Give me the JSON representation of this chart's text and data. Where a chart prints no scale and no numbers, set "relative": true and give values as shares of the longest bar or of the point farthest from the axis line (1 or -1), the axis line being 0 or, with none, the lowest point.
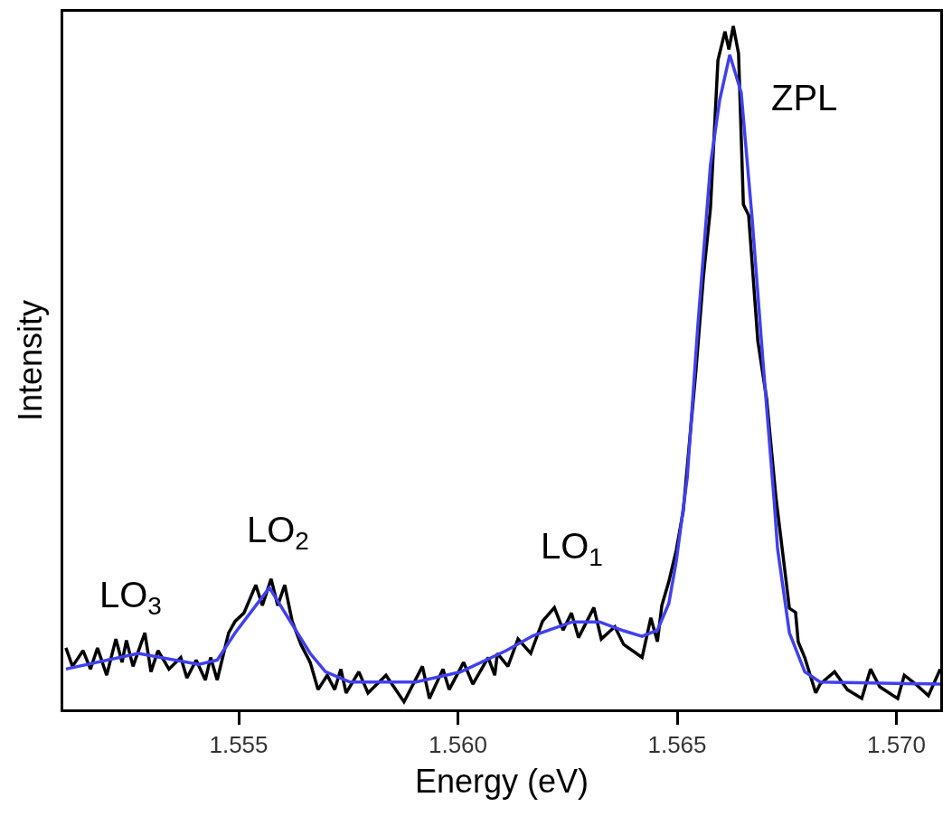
{
  "chart_data": {
    "type": "line",
    "relative": true,
    "xlabel": "Energy (eV)",
    "ylabel": "Intensity",
    "xlim": [
      1.551,
      1.571
    ],
    "xticks": [
      1.555,
      {
        "value": 1.56,
        "label": "1.560"
      },
      1.565,
      {
        "value": 1.57,
        "label": "1.570"
      }
    ],
    "marker": "none",
    "line_style": "solid",
    "tick_labels": "x",
    "series": [
      {
        "color": "#000000",
        "x": [
          1.55106,
          1.55121,
          1.55145,
          1.55162,
          1.55178,
          1.55199,
          1.5522,
          1.55234,
          1.55244,
          1.55259,
          1.55286,
          1.553,
          1.55316,
          1.55341,
          1.55368,
          1.55382,
          1.55403,
          1.55424,
          1.55436,
          1.55451,
          1.55477,
          1.55492,
          1.55512,
          1.55539,
          1.55554,
          1.55574,
          1.55589,
          1.55605,
          1.55622,
          1.55642,
          1.55663,
          1.55681,
          1.55702,
          1.55719,
          1.55733,
          1.55745,
          1.55774,
          1.55795,
          1.55836,
          1.55877,
          1.55919,
          1.55935,
          1.55966,
          1.5598,
          1.56013,
          1.56034,
          1.56069,
          1.56084,
          1.5609,
          1.56114,
          1.56137,
          1.56166,
          1.56193,
          1.5622,
          1.5624,
          1.56259,
          1.56275,
          1.5631,
          1.56327,
          1.56358,
          1.56378,
          1.5642,
          1.5644,
          1.56455,
          1.56465,
          1.56481,
          1.56498,
          1.56514,
          1.56543,
          1.5656,
          1.56576,
          1.56593,
          1.56609,
          1.56618,
          1.56628,
          1.5664,
          1.56651,
          1.56663,
          1.56684,
          1.56704,
          1.56725,
          1.56756,
          1.5677,
          1.56776,
          1.56791,
          1.56816,
          1.56826,
          1.56859,
          1.56888,
          1.56921,
          1.56941,
          1.56962,
          1.57003,
          1.57018,
          1.57044,
          1.57073,
          1.571
        ],
        "values": [
          0.09,
          0.063,
          0.086,
          0.059,
          0.09,
          0.05,
          0.103,
          0.069,
          0.101,
          0.063,
          0.112,
          0.055,
          0.086,
          0.059,
          0.076,
          0.046,
          0.072,
          0.043,
          0.076,
          0.043,
          0.112,
          0.129,
          0.141,
          0.182,
          0.152,
          0.191,
          0.152,
          0.182,
          0.129,
          0.095,
          0.069,
          0.029,
          0.05,
          0.029,
          0.059,
          0.024,
          0.055,
          0.024,
          0.05,
          0.011,
          0.063,
          0.016,
          0.059,
          0.029,
          0.069,
          0.037,
          0.076,
          0.05,
          0.082,
          0.063,
          0.103,
          0.082,
          0.129,
          0.149,
          0.116,
          0.141,
          0.105,
          0.149,
          0.103,
          0.121,
          0.095,
          0.076,
          0.134,
          0.099,
          0.152,
          0.187,
          0.233,
          0.291,
          0.497,
          0.634,
          0.734,
          0.95,
          0.992,
          0.966,
          1.0,
          0.96,
          0.739,
          0.723,
          0.539,
          0.455,
          0.312,
          0.148,
          0.142,
          0.099,
          0.076,
          0.024,
          0.037,
          0.055,
          0.029,
          0.016,
          0.059,
          0.033,
          0.016,
          0.05,
          0.037,
          0.02,
          0.059
        ]
      },
      {
        "color": "#4040f0",
        "x": [
          1.55106,
          1.55271,
          1.55409,
          1.55451,
          1.55492,
          1.5557,
          1.55663,
          1.55698,
          1.55754,
          1.55904,
          1.56007,
          1.5611,
          1.56172,
          1.56261,
          1.56323,
          1.56378,
          1.5642,
          1.56455,
          1.56481,
          1.56498,
          1.56523,
          1.56547,
          1.56576,
          1.56597,
          1.5662,
          1.56646,
          1.56671,
          1.56696,
          1.56721,
          1.56729,
          1.56756,
          1.56791,
          1.56826,
          1.571
        ],
        "values": [
          0.059,
          0.082,
          0.066,
          0.072,
          0.112,
          0.178,
          0.082,
          0.055,
          0.04,
          0.04,
          0.055,
          0.086,
          0.108,
          0.128,
          0.128,
          0.115,
          0.107,
          0.116,
          0.155,
          0.217,
          0.339,
          0.56,
          0.797,
          0.892,
          0.958,
          0.903,
          0.718,
          0.507,
          0.307,
          0.235,
          0.112,
          0.055,
          0.04,
          0.037
        ]
      }
    ],
    "annotations": [
      "LO$_{3}$",
      "LO$_{2}$",
      "LO$_{1}$",
      "ZPL"
    ]
  }
}
